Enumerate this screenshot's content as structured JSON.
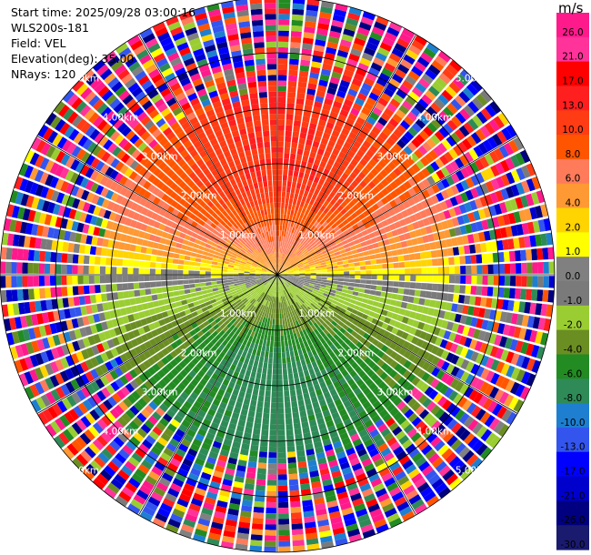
{
  "header": {
    "start_time": "Start time: 2025/09/28 03:00:16",
    "instrument": "WLS200s-181",
    "field": "Field: VEL",
    "elevation": "Elevation(deg): 35.00",
    "nrays": "NRays: 120"
  },
  "colorbar": {
    "unit": "m/s",
    "ticks": [
      "26.0",
      "21.0",
      "17.0",
      "13.0",
      "10.0",
      "8.0",
      "6.0",
      "4.0",
      "2.0",
      "1.0",
      "0.0",
      "-1.0",
      "-2.0",
      "-4.0",
      "-6.0",
      "-8.0",
      "-10.0",
      "-13.0",
      "-17.0",
      "-21.0",
      "-26.0",
      "-30.0"
    ],
    "colors": [
      "#ff1a8c",
      "#ff3399",
      "#ff0000",
      "#ff1f1f",
      "#ff3c14",
      "#ff5500",
      "#ff7b5a",
      "#ff9933",
      "#ffd400",
      "#ffff00",
      "#808080",
      "#7a7a7a",
      "#9acd32",
      "#6b8e23",
      "#228b22",
      "#2e8b57",
      "#1e7fd0",
      "#3355ee",
      "#0000ff",
      "#0000cc",
      "#000080",
      "#1a1a6e"
    ]
  },
  "chart_data": {
    "type": "polar velocity PPI",
    "title": "",
    "field": "VEL",
    "elevation_deg": 35.0,
    "nrays": 120,
    "range_rings_km": [
      1.0,
      2.0,
      3.0,
      4.0,
      5.0
    ],
    "range_ring_labels": [
      "1.00km",
      "2.00km",
      "3.00km",
      "4.00km",
      "5.00km"
    ],
    "max_range_km": 5.0,
    "vmin": -30.0,
    "vmax": 26.0,
    "pattern": {
      "north_sector_velocity_ms": 10,
      "south_sector_velocity_ms": -9,
      "clean_radius_km": 3.2,
      "noise_radius_km": 4.0
    }
  }
}
